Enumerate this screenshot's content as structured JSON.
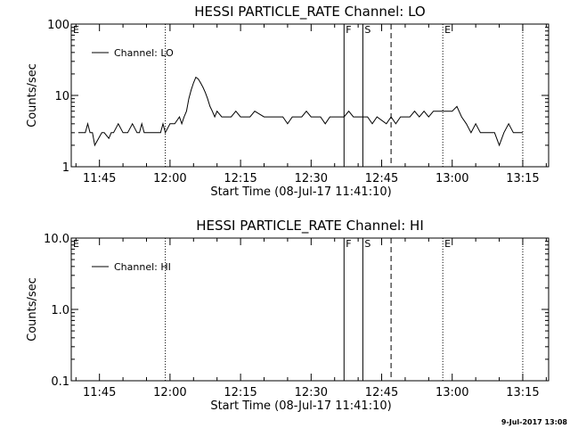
{
  "timestamp": "9-Jul-2017 13:08",
  "chart_data": [
    {
      "type": "line",
      "title": "HESSI PARTICLE_RATE Channel: LO",
      "xlabel": "Start Time (08-Jul-17 11:41:10)",
      "ylabel": "Counts/sec",
      "yscale": "log",
      "ylim": [
        1,
        100
      ],
      "y_tick_labels": [
        "1",
        "10",
        "100"
      ],
      "y_tick_values": [
        1,
        10,
        100
      ],
      "x_tick_labels": [
        "11:45",
        "12:00",
        "12:15",
        "12:30",
        "12:45",
        "13:00",
        "13:15"
      ],
      "x_tick_values_min": [
        45,
        60,
        75,
        90,
        105,
        120,
        135
      ],
      "xlim_min": [
        39,
        140.5
      ],
      "legend": {
        "placement": "top-left",
        "label": "Channel: LO"
      },
      "events": [
        {
          "label": "E",
          "time": "11:39",
          "style": "dotted"
        },
        {
          "label": "",
          "time": "11:59",
          "style": "dotted"
        },
        {
          "label": "F",
          "time": "12:37",
          "style": "solid"
        },
        {
          "label": "S",
          "time": "12:41",
          "style": "solid"
        },
        {
          "label": "",
          "time": "12:47",
          "style": "dashed"
        },
        {
          "label": "E",
          "time": "12:58",
          "style": "dotted"
        },
        {
          "label": "",
          "time": "13:15",
          "style": "dotted"
        }
      ],
      "series": [
        {
          "name": "Channel: LO",
          "x_min": [
            40.5,
            42,
            42.5,
            43,
            43.5,
            44,
            45.5,
            46,
            47,
            47.5,
            48,
            49,
            50,
            51,
            52,
            53,
            53.5,
            54,
            54.5,
            55,
            56,
            57,
            58,
            58.5,
            59,
            60,
            61,
            62,
            62.5,
            63,
            63.5,
            64,
            64.5,
            65,
            65.5,
            66,
            66.5,
            67,
            67.5,
            68,
            68.5,
            69,
            69.5,
            70,
            71,
            72,
            73,
            74,
            75,
            76,
            77,
            78,
            80,
            81,
            82,
            83,
            84,
            85,
            86,
            87,
            88,
            89,
            90,
            91,
            92,
            93,
            94,
            95,
            96,
            97,
            98,
            99,
            100,
            102,
            103,
            104,
            106,
            107,
            108,
            109,
            110,
            111,
            112,
            113,
            114,
            115,
            116,
            117,
            118,
            119,
            120,
            121,
            122,
            123,
            124,
            125,
            126,
            127,
            128,
            129,
            130,
            131,
            132,
            133,
            134,
            135
          ],
          "y": [
            3,
            3,
            4,
            3,
            3,
            2,
            3,
            3,
            2.5,
            3,
            3,
            4,
            3,
            3,
            4,
            3,
            3,
            4,
            3,
            3,
            3,
            3,
            3,
            4,
            3,
            4,
            4,
            5,
            4,
            5,
            6,
            9,
            12,
            15,
            18,
            17,
            15,
            13,
            11,
            9,
            7,
            6,
            5,
            6,
            5,
            5,
            5,
            6,
            5,
            5,
            5,
            6,
            5,
            5,
            5,
            5,
            5,
            4,
            5,
            5,
            5,
            6,
            5,
            5,
            5,
            4,
            5,
            5,
            5,
            5,
            6,
            5,
            5,
            5,
            4,
            5,
            4,
            5,
            4,
            5,
            5,
            5,
            6,
            5,
            6,
            5,
            6,
            6,
            6,
            6,
            6,
            7,
            5,
            4,
            3,
            4,
            3,
            3,
            3,
            3,
            2,
            3,
            4,
            3,
            3,
            3
          ]
        }
      ]
    },
    {
      "type": "line",
      "title": "HESSI PARTICLE_RATE Channel: HI",
      "xlabel": "Start Time (08-Jul-17 11:41:10)",
      "ylabel": "Counts/sec",
      "yscale": "log",
      "ylim": [
        0.1,
        10
      ],
      "y_tick_labels": [
        "0.1",
        "1.0",
        "10.0"
      ],
      "y_tick_values": [
        0.1,
        1,
        10
      ],
      "x_tick_labels": [
        "11:45",
        "12:00",
        "12:15",
        "12:30",
        "12:45",
        "13:00",
        "13:15"
      ],
      "x_tick_values_min": [
        45,
        60,
        75,
        90,
        105,
        120,
        135
      ],
      "xlim_min": [
        39,
        140.5
      ],
      "legend": {
        "placement": "top-left",
        "label": "Channel: HI"
      },
      "events": [
        {
          "label": "E",
          "time": "11:39",
          "style": "dotted"
        },
        {
          "label": "",
          "time": "11:59",
          "style": "dotted"
        },
        {
          "label": "F",
          "time": "12:37",
          "style": "solid"
        },
        {
          "label": "S",
          "time": "12:41",
          "style": "solid"
        },
        {
          "label": "",
          "time": "12:47",
          "style": "dashed"
        },
        {
          "label": "E",
          "time": "12:58",
          "style": "dotted"
        },
        {
          "label": "",
          "time": "13:15",
          "style": "dotted"
        }
      ],
      "series": [
        {
          "name": "Channel: HI",
          "x_min": [],
          "y": []
        }
      ]
    }
  ]
}
